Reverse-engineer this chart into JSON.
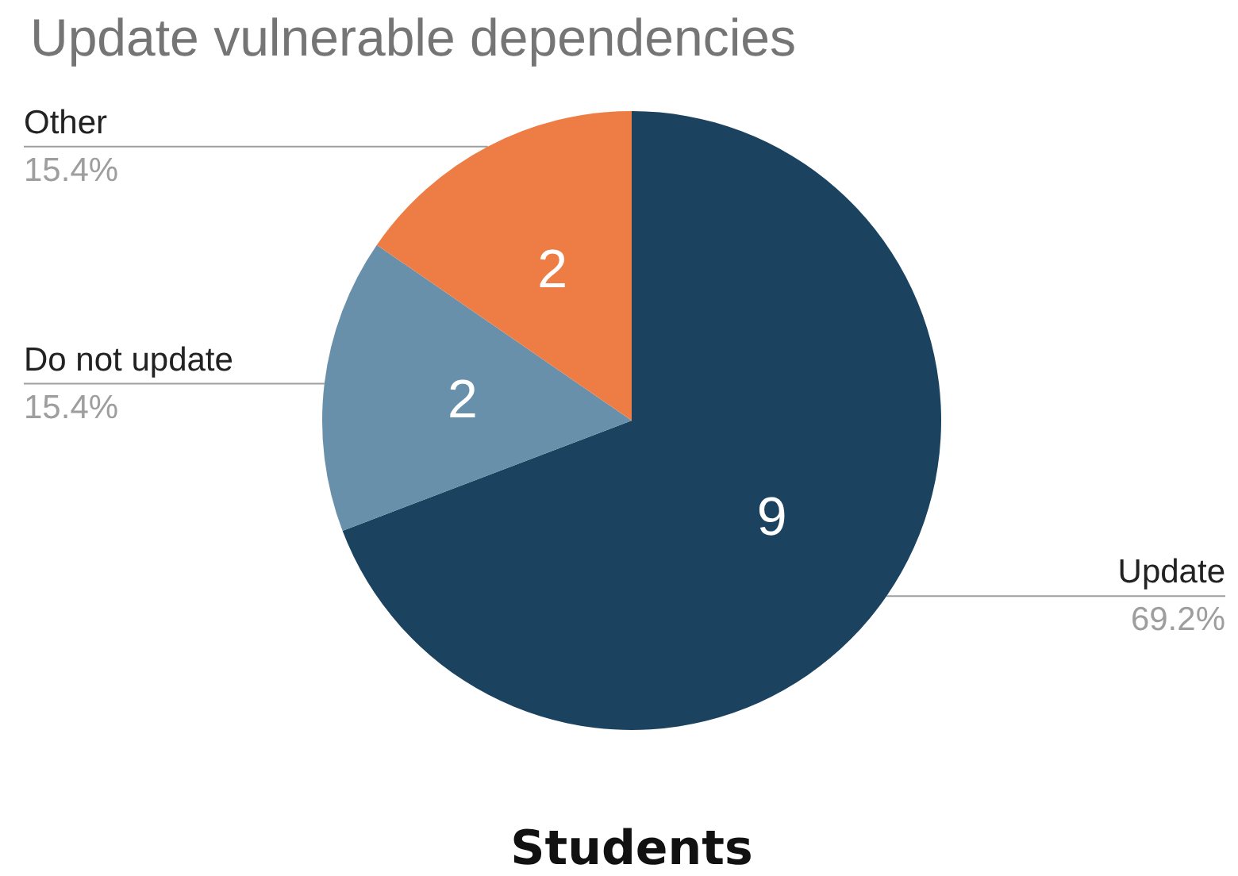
{
  "chart_data": {
    "type": "pie",
    "title": "Update vulnerable dependencies",
    "xlabel": "Students",
    "categories": [
      "Update",
      "Do not update",
      "Other"
    ],
    "values": [
      69.2,
      15.4,
      15.4
    ],
    "colors": [
      "#1b4360",
      "#6890aa",
      "#ee7d45"
    ],
    "value_labels": [
      "69.2%",
      "15.4%",
      "15.4%"
    ],
    "annotations": [
      {
        "text": "9",
        "x": "Update"
      },
      {
        "text": "2",
        "x": "Do not update"
      },
      {
        "text": "2",
        "x": "Other"
      }
    ],
    "legend": false
  }
}
